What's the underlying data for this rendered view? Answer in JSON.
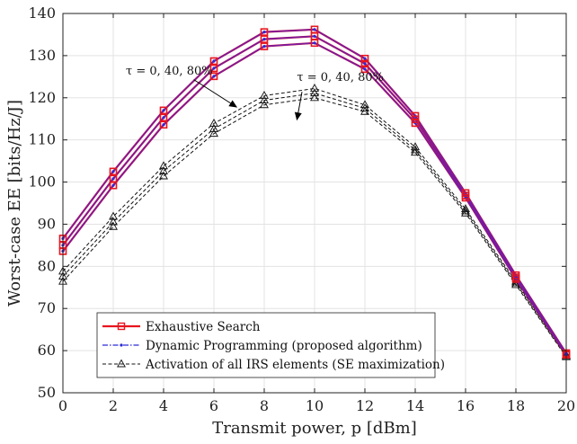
{
  "chart_data": {
    "type": "line",
    "xlabel": "Transmit power, p [dBm]",
    "ylabel": "Worst-case EE [bits/Hz/J]",
    "xlim": [
      0,
      20
    ],
    "ylim": [
      50,
      140
    ],
    "xticks": [
      0,
      2,
      4,
      6,
      8,
      10,
      12,
      14,
      16,
      18,
      20
    ],
    "yticks": [
      50,
      60,
      70,
      80,
      90,
      100,
      110,
      120,
      130,
      140
    ],
    "grid": true,
    "legend_position": "bottom-left",
    "x": [
      0,
      2,
      4,
      6,
      8,
      10,
      12,
      14,
      16,
      18,
      20
    ],
    "series": [
      {
        "name": "Exhaustive Search",
        "group": "es",
        "tau": "0%",
        "color": "#e8141e",
        "values": [
          86.6,
          102.5,
          117.0,
          128.7,
          135.6,
          136.2,
          129.3,
          115.7,
          97.4,
          77.9,
          59.4
        ]
      },
      {
        "name": "Exhaustive Search",
        "group": "es",
        "tau": "40%",
        "color": "#e8141e",
        "values": [
          85.0,
          100.8,
          115.3,
          127.0,
          133.9,
          134.6,
          128.1,
          114.9,
          96.8,
          77.4,
          59.2
        ]
      },
      {
        "name": "Exhaustive Search",
        "group": "es",
        "tau": "80%",
        "color": "#e8141e",
        "values": [
          83.6,
          99.2,
          113.6,
          125.1,
          132.2,
          133.0,
          126.8,
          114.0,
          96.3,
          77.0,
          59.0
        ]
      },
      {
        "name": "Dynamic Programming (proposed algorithm)",
        "group": "dp",
        "tau": "0%",
        "color": "#2a2ad8",
        "values": [
          86.6,
          102.5,
          117.0,
          128.7,
          135.6,
          136.2,
          129.3,
          115.7,
          97.4,
          77.9,
          59.4
        ]
      },
      {
        "name": "Dynamic Programming (proposed algorithm)",
        "group": "dp",
        "tau": "40%",
        "color": "#2a2ad8",
        "values": [
          85.0,
          100.8,
          115.3,
          127.0,
          133.9,
          134.6,
          128.1,
          114.9,
          96.8,
          77.4,
          59.2
        ]
      },
      {
        "name": "Dynamic Programming (proposed algorithm)",
        "group": "dp",
        "tau": "80%",
        "color": "#2a2ad8",
        "values": [
          83.6,
          99.2,
          113.6,
          125.1,
          132.2,
          133.0,
          126.8,
          114.0,
          96.3,
          77.0,
          59.0
        ]
      },
      {
        "name": "Activation of all IRS elements (SE maximization)",
        "group": "all",
        "tau": "0%",
        "color": "#111111",
        "values": [
          78.8,
          91.8,
          103.8,
          113.9,
          120.5,
          122.2,
          118.3,
          108.3,
          93.6,
          76.4,
          58.9
        ]
      },
      {
        "name": "Activation of all IRS elements (SE maximization)",
        "group": "all",
        "tau": "40%",
        "color": "#111111",
        "values": [
          77.6,
          90.5,
          102.6,
          112.6,
          119.4,
          121.1,
          117.5,
          107.6,
          93.1,
          76.0,
          58.7
        ]
      },
      {
        "name": "Activation of all IRS elements (SE maximization)",
        "group": "all",
        "tau": "80%",
        "color": "#111111",
        "values": [
          76.4,
          89.4,
          101.4,
          111.5,
          118.3,
          120.0,
          116.7,
          107.0,
          92.6,
          75.6,
          58.5
        ]
      }
    ],
    "legend": [
      {
        "label": "Exhaustive Search",
        "color": "#e8141e",
        "marker": "square",
        "dash": "solid"
      },
      {
        "label": "Dynamic Programming (proposed algorithm)",
        "color": "#2a2ad8",
        "marker": "dot",
        "dash": "dashdot"
      },
      {
        "label": "Activation of all IRS elements (SE maximization)",
        "color": "#111111",
        "marker": "triangle",
        "dash": "dashed"
      }
    ],
    "annotations": [
      {
        "text": "τ = 0, 40, 80%",
        "target": "exhaustive",
        "anchor": [
          2.5,
          125.5
        ],
        "arrow_from": [
          5.2,
          124.3
        ],
        "arrow_to": [
          6.9,
          117.8
        ]
      },
      {
        "text": "τ = 0, 40, 80%",
        "target": "all",
        "anchor": [
          9.3,
          124.0
        ],
        "arrow_from": [
          9.5,
          121.4
        ],
        "arrow_to": [
          9.3,
          114.8
        ]
      }
    ]
  }
}
